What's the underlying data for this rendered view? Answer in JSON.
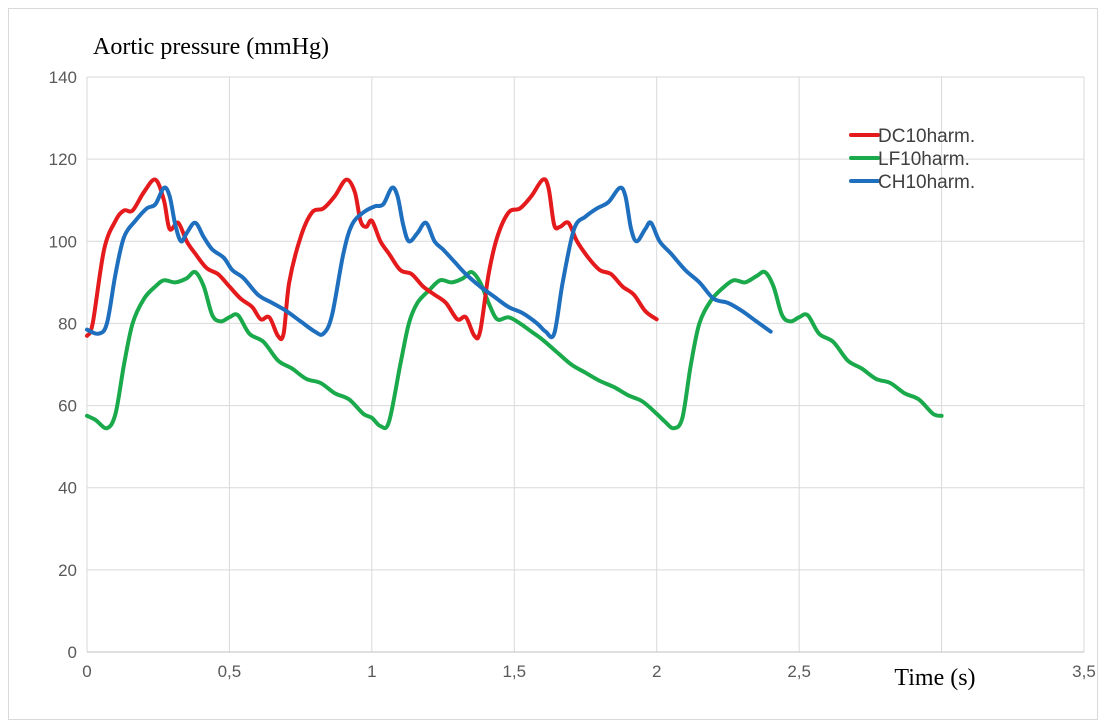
{
  "chart_data": {
    "type": "line",
    "title": "Aortic pressure (mmHg)",
    "xlabel": "Time (s)",
    "ylabel": "",
    "xlim": [
      0,
      3.5
    ],
    "ylim": [
      0,
      140
    ],
    "x_ticks": [
      "0",
      "0,5",
      "1",
      "1,5",
      "2",
      "2,5",
      "3",
      "3,5"
    ],
    "y_ticks": [
      "0",
      "20",
      "40",
      "60",
      "80",
      "100",
      "120",
      "140"
    ],
    "grid": true,
    "legend_position": "top-right",
    "series": [
      {
        "name": "DC10harm.",
        "color": "#e41a1c",
        "points": [
          [
            0,
            77
          ],
          [
            0.02,
            80
          ],
          [
            0.06,
            98
          ],
          [
            0.1,
            105
          ],
          [
            0.13,
            107.5
          ],
          [
            0.16,
            107.5
          ],
          [
            0.2,
            112
          ],
          [
            0.24,
            115
          ],
          [
            0.27,
            110
          ],
          [
            0.29,
            103
          ],
          [
            0.32,
            104.5
          ],
          [
            0.35,
            100
          ],
          [
            0.38,
            97
          ],
          [
            0.42,
            93.5
          ],
          [
            0.46,
            92
          ],
          [
            0.5,
            89
          ],
          [
            0.54,
            86
          ],
          [
            0.58,
            84
          ],
          [
            0.61,
            81
          ],
          [
            0.64,
            81.5
          ],
          [
            0.67,
            77
          ],
          [
            0.69,
            77.5
          ],
          [
            0.71,
            90
          ],
          [
            0.75,
            101
          ],
          [
            0.79,
            107
          ],
          [
            0.83,
            108
          ],
          [
            0.87,
            111
          ],
          [
            0.91,
            115
          ],
          [
            0.94,
            112
          ],
          [
            0.96,
            105
          ],
          [
            0.98,
            103.5
          ],
          [
            1.0,
            105
          ],
          [
            1.03,
            100
          ],
          [
            1.06,
            97
          ],
          [
            1.1,
            93
          ],
          [
            1.14,
            92
          ],
          [
            1.18,
            89
          ],
          [
            1.22,
            87
          ],
          [
            1.26,
            85
          ],
          [
            1.3,
            81
          ],
          [
            1.33,
            81.5
          ],
          [
            1.36,
            77
          ],
          [
            1.38,
            78
          ],
          [
            1.41,
            92
          ],
          [
            1.44,
            101
          ],
          [
            1.48,
            107
          ],
          [
            1.52,
            108
          ],
          [
            1.56,
            111
          ],
          [
            1.6,
            115
          ],
          [
            1.62,
            113
          ],
          [
            1.64,
            104
          ],
          [
            1.66,
            103.5
          ],
          [
            1.69,
            104.5
          ],
          [
            1.72,
            100
          ],
          [
            1.76,
            96
          ],
          [
            1.8,
            93
          ],
          [
            1.84,
            92
          ],
          [
            1.88,
            89
          ],
          [
            1.92,
            87
          ],
          [
            1.96,
            83
          ],
          [
            2.0,
            81
          ]
        ]
      },
      {
        "name": "LF10harm.",
        "color": "#1aaa4b",
        "points": [
          [
            0,
            57.5
          ],
          [
            0.03,
            56.5
          ],
          [
            0.07,
            54.5
          ],
          [
            0.1,
            58
          ],
          [
            0.13,
            70
          ],
          [
            0.16,
            80
          ],
          [
            0.2,
            86
          ],
          [
            0.24,
            89
          ],
          [
            0.27,
            90.5
          ],
          [
            0.31,
            90
          ],
          [
            0.35,
            91
          ],
          [
            0.38,
            92.5
          ],
          [
            0.41,
            89
          ],
          [
            0.44,
            82
          ],
          [
            0.47,
            80.5
          ],
          [
            0.5,
            81.5
          ],
          [
            0.53,
            82
          ],
          [
            0.57,
            77.5
          ],
          [
            0.62,
            75.5
          ],
          [
            0.67,
            71
          ],
          [
            0.72,
            69
          ],
          [
            0.77,
            66.5
          ],
          [
            0.82,
            65.5
          ],
          [
            0.87,
            63
          ],
          [
            0.92,
            61.5
          ],
          [
            0.97,
            58
          ],
          [
            1.0,
            57
          ],
          [
            1.03,
            55
          ],
          [
            1.06,
            56
          ],
          [
            1.1,
            70
          ],
          [
            1.13,
            80
          ],
          [
            1.16,
            85
          ],
          [
            1.2,
            88
          ],
          [
            1.24,
            90.5
          ],
          [
            1.28,
            90
          ],
          [
            1.32,
            91
          ],
          [
            1.35,
            92.5
          ],
          [
            1.38,
            90
          ],
          [
            1.41,
            85
          ],
          [
            1.44,
            81
          ],
          [
            1.48,
            81.5
          ],
          [
            1.52,
            80
          ],
          [
            1.56,
            78
          ],
          [
            1.6,
            76
          ],
          [
            1.65,
            73
          ],
          [
            1.7,
            70
          ],
          [
            1.75,
            68
          ],
          [
            1.8,
            66
          ],
          [
            1.85,
            64.5
          ],
          [
            1.9,
            62.5
          ],
          [
            1.95,
            61
          ],
          [
            2.0,
            58
          ],
          [
            2.03,
            56
          ],
          [
            2.06,
            54.5
          ],
          [
            2.09,
            57
          ],
          [
            2.12,
            70
          ],
          [
            2.15,
            80
          ],
          [
            2.19,
            85.5
          ],
          [
            2.23,
            88.5
          ],
          [
            2.27,
            90.5
          ],
          [
            2.31,
            90
          ],
          [
            2.35,
            91.5
          ],
          [
            2.38,
            92.5
          ],
          [
            2.41,
            89
          ],
          [
            2.44,
            82
          ],
          [
            2.47,
            80.5
          ],
          [
            2.5,
            81.5
          ],
          [
            2.53,
            82
          ],
          [
            2.57,
            77.5
          ],
          [
            2.62,
            75.5
          ],
          [
            2.67,
            71
          ],
          [
            2.72,
            69
          ],
          [
            2.77,
            66.5
          ],
          [
            2.82,
            65.5
          ],
          [
            2.87,
            63
          ],
          [
            2.92,
            61.5
          ],
          [
            2.97,
            58
          ],
          [
            3.0,
            57.5
          ]
        ]
      },
      {
        "name": "CH10harm.",
        "color": "#1f6fbf",
        "points": [
          [
            0,
            78.5
          ],
          [
            0.04,
            77.5
          ],
          [
            0.07,
            80
          ],
          [
            0.1,
            92
          ],
          [
            0.13,
            101
          ],
          [
            0.17,
            105
          ],
          [
            0.21,
            108
          ],
          [
            0.24,
            109
          ],
          [
            0.27,
            113
          ],
          [
            0.29,
            111
          ],
          [
            0.31,
            104
          ],
          [
            0.33,
            100
          ],
          [
            0.35,
            102
          ],
          [
            0.38,
            104.5
          ],
          [
            0.41,
            101
          ],
          [
            0.44,
            98
          ],
          [
            0.48,
            96
          ],
          [
            0.51,
            93
          ],
          [
            0.55,
            91
          ],
          [
            0.6,
            87
          ],
          [
            0.65,
            85
          ],
          [
            0.7,
            83
          ],
          [
            0.75,
            80.5
          ],
          [
            0.8,
            78
          ],
          [
            0.83,
            77.5
          ],
          [
            0.86,
            82
          ],
          [
            0.9,
            97
          ],
          [
            0.93,
            104
          ],
          [
            0.97,
            107
          ],
          [
            1.01,
            108.5
          ],
          [
            1.04,
            109
          ],
          [
            1.07,
            113
          ],
          [
            1.09,
            111
          ],
          [
            1.11,
            104
          ],
          [
            1.13,
            100
          ],
          [
            1.16,
            102
          ],
          [
            1.19,
            104.5
          ],
          [
            1.22,
            100
          ],
          [
            1.25,
            98
          ],
          [
            1.29,
            95
          ],
          [
            1.33,
            92
          ],
          [
            1.38,
            89
          ],
          [
            1.43,
            86.5
          ],
          [
            1.48,
            84
          ],
          [
            1.53,
            82.5
          ],
          [
            1.58,
            80
          ],
          [
            1.61,
            78
          ],
          [
            1.64,
            77.5
          ],
          [
            1.67,
            90
          ],
          [
            1.71,
            103
          ],
          [
            1.75,
            106
          ],
          [
            1.79,
            108
          ],
          [
            1.83,
            109.5
          ],
          [
            1.87,
            113
          ],
          [
            1.89,
            111
          ],
          [
            1.91,
            103
          ],
          [
            1.93,
            100
          ],
          [
            1.96,
            103
          ],
          [
            1.98,
            104.5
          ],
          [
            2.01,
            100
          ],
          [
            2.05,
            97
          ],
          [
            2.1,
            93
          ],
          [
            2.15,
            90
          ],
          [
            2.2,
            86
          ],
          [
            2.25,
            85
          ],
          [
            2.3,
            83
          ],
          [
            2.35,
            80.5
          ],
          [
            2.4,
            78
          ]
        ]
      }
    ]
  }
}
